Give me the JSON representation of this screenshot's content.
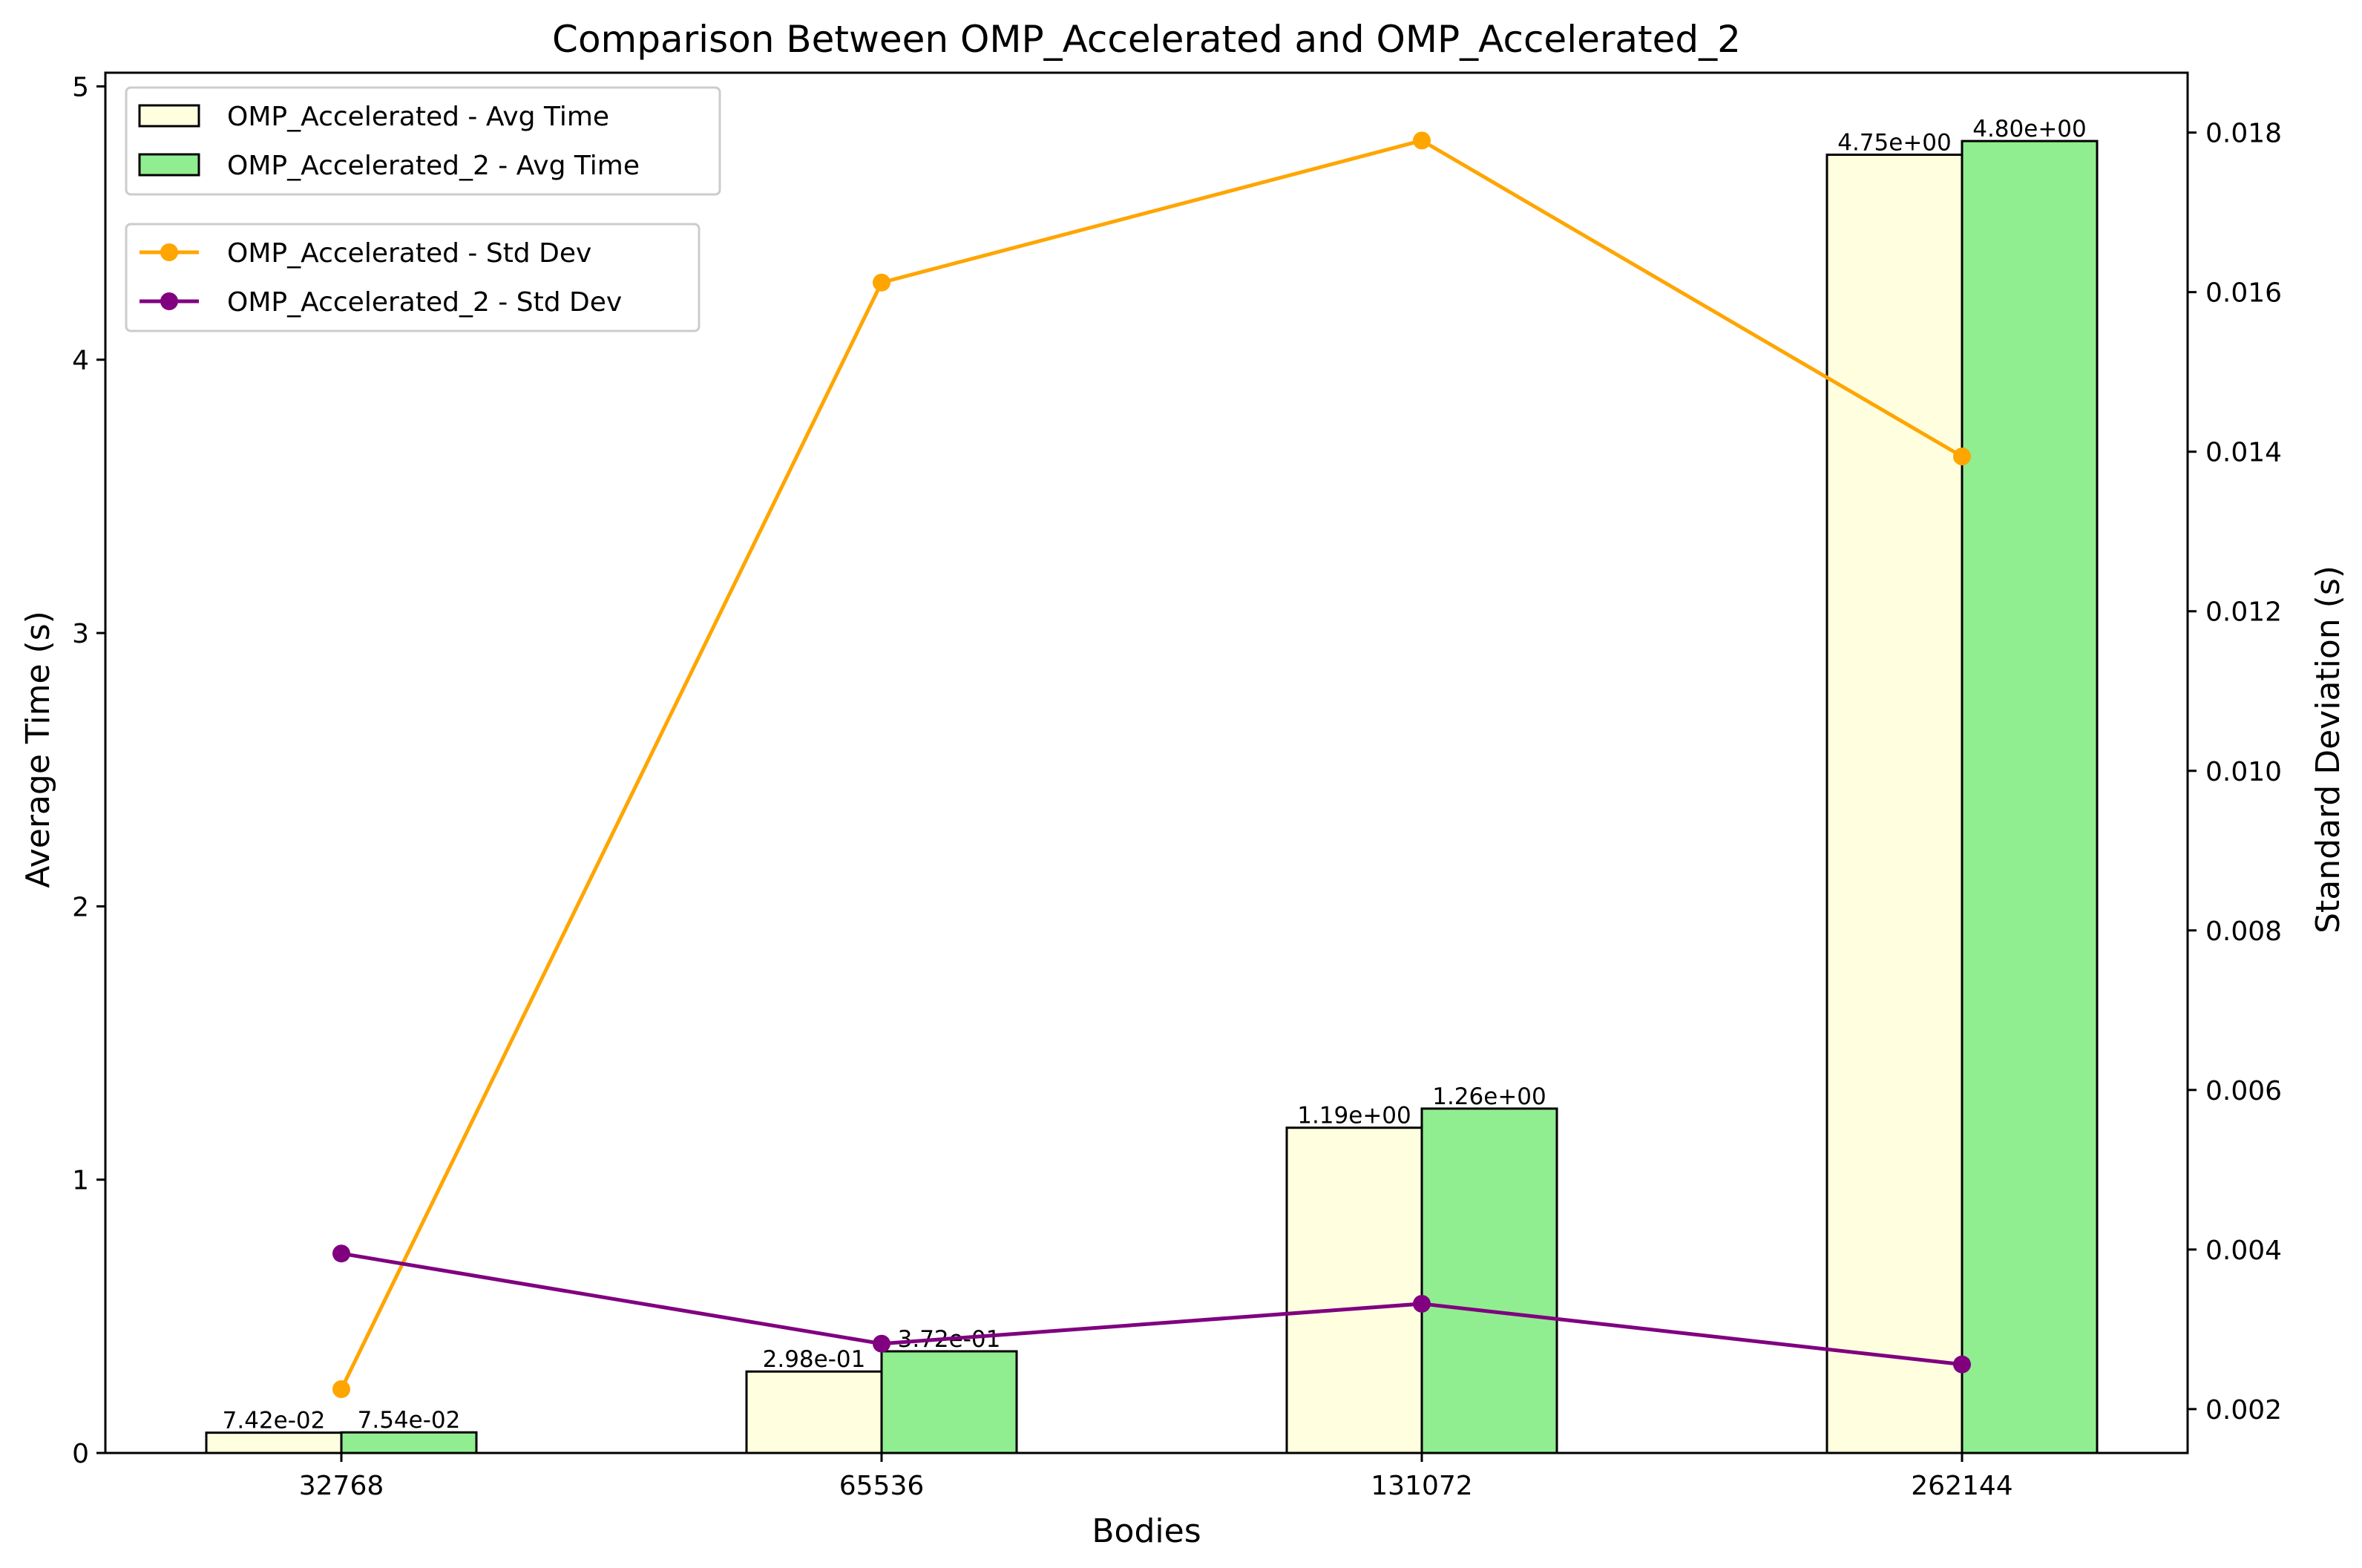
{
  "chart_data": {
    "type": "bar",
    "title": "Comparison Between OMP_Accelerated and OMP_Accelerated_2",
    "xlabel": "Bodies",
    "ylabel": "Average Time (s)",
    "y2label": "Standard Deviation (s)",
    "categories": [
      "32768",
      "65536",
      "131072",
      "262144"
    ],
    "ylim": [
      0,
      5.05
    ],
    "y2lim": [
      0.00145,
      0.01875
    ],
    "yticks": [
      "0",
      "1",
      "2",
      "3",
      "4",
      "5"
    ],
    "yticks_values": [
      0,
      1,
      2,
      3,
      4,
      5
    ],
    "y2ticks": [
      "0.002",
      "0.004",
      "0.006",
      "0.008",
      "0.010",
      "0.012",
      "0.014",
      "0.016",
      "0.018"
    ],
    "y2ticks_values": [
      0.002,
      0.004,
      0.006,
      0.008,
      0.01,
      0.012,
      0.014,
      0.016,
      0.018
    ],
    "bar_series": [
      {
        "name": "OMP_Accelerated - Avg Time",
        "color": "#ffffe0",
        "values": [
          0.0742,
          0.298,
          1.19,
          4.75
        ],
        "labels": [
          "7.42e-02",
          "2.98e-01",
          "1.19e+00",
          "4.75e+00"
        ]
      },
      {
        "name": "OMP_Accelerated_2 - Avg Time",
        "color": "#90ee90",
        "values": [
          0.0754,
          0.372,
          1.26,
          4.8
        ],
        "labels": [
          "7.54e-02",
          "3.72e-01",
          "1.26e+00",
          "4.80e+00"
        ]
      }
    ],
    "line_series": [
      {
        "name": "OMP_Accelerated - Std Dev",
        "color": "#ffa500",
        "values": [
          0.00225,
          0.01612,
          0.0179,
          0.01394
        ]
      },
      {
        "name": "OMP_Accelerated_2 - Std Dev",
        "color": "#800080",
        "values": [
          0.00395,
          0.00282,
          0.00332,
          0.00256
        ]
      }
    ],
    "grid": false,
    "legend_placement": "top-left"
  }
}
